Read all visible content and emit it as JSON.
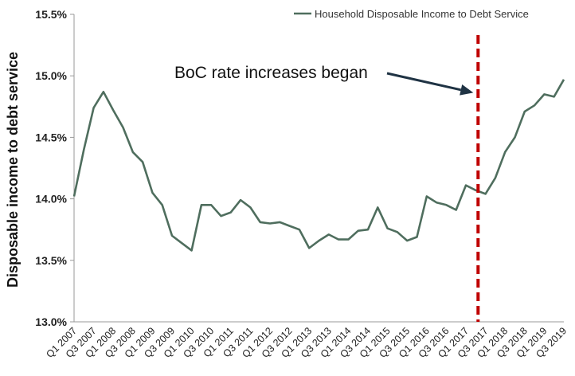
{
  "chart_data": {
    "type": "line",
    "title": "",
    "xlabel": "",
    "ylabel": "Disposable income to debt service",
    "ylim": [
      13.0,
      15.5
    ],
    "yticks": [
      13.0,
      13.5,
      14.0,
      14.5,
      15.0,
      15.5
    ],
    "ytick_labels": [
      "13.0%",
      "13.5%",
      "14.0%",
      "14.5%",
      "15.0%",
      "15.5%"
    ],
    "grid": false,
    "legend": {
      "placement": "top-right"
    },
    "categories": [
      "Q1 2007",
      "Q2 2007",
      "Q3 2007",
      "Q4 2007",
      "Q1 2008",
      "Q2 2008",
      "Q3 2008",
      "Q4 2008",
      "Q1 2009",
      "Q2 2009",
      "Q3 2009",
      "Q4 2009",
      "Q1 2010",
      "Q2 2010",
      "Q3 2010",
      "Q4 2010",
      "Q1 2011",
      "Q2 2011",
      "Q3 2011",
      "Q4 2011",
      "Q1 2012",
      "Q2 2012",
      "Q3 2012",
      "Q4 2012",
      "Q1 2013",
      "Q2 2013",
      "Q3 2013",
      "Q4 2013",
      "Q1 2014",
      "Q2 2014",
      "Q3 2014",
      "Q4 2014",
      "Q1 2015",
      "Q2 2015",
      "Q3 2015",
      "Q4 2015",
      "Q1 2016",
      "Q2 2016",
      "Q3 2016",
      "Q4 2016",
      "Q1 2017",
      "Q2 2017",
      "Q3 2017",
      "Q4 2017",
      "Q1 2018",
      "Q2 2018",
      "Q3 2018",
      "Q4 2018",
      "Q1 2019",
      "Q2 2019",
      "Q3 2019"
    ],
    "tick_labels": [
      "Q1 2007",
      "Q3 2007",
      "Q1 2008",
      "Q3 2008",
      "Q1 2009",
      "Q3 2009",
      "Q1 2010",
      "Q3 2010",
      "Q1 2011",
      "Q3 2011",
      "Q1 2012",
      "Q3 2012",
      "Q1 2013",
      "Q3 2013",
      "Q1 2014",
      "Q3 2014",
      "Q1 2015",
      "Q3 2015",
      "Q1 2016",
      "Q3 2016",
      "Q1 2017",
      "Q3 2017",
      "Q1 2018",
      "Q3 2018",
      "Q1 2019",
      "Q3 2019"
    ],
    "series": [
      {
        "name": "Household Disposable Income to Debt Service",
        "color": "#4f6e5e",
        "values": [
          14.02,
          14.4,
          14.74,
          14.87,
          14.72,
          14.58,
          14.38,
          14.3,
          14.05,
          13.95,
          13.7,
          13.64,
          13.58,
          13.95,
          13.95,
          13.86,
          13.89,
          13.99,
          13.93,
          13.81,
          13.8,
          13.81,
          13.78,
          13.75,
          13.6,
          13.66,
          13.71,
          13.67,
          13.67,
          13.74,
          13.75,
          13.93,
          13.76,
          13.73,
          13.66,
          13.69,
          14.02,
          13.97,
          13.95,
          13.91,
          14.11,
          14.07,
          14.04,
          14.17,
          14.38,
          14.5,
          14.71,
          14.76,
          14.85,
          14.83,
          14.97
        ]
      }
    ],
    "marker": {
      "x": "Q2 2017",
      "color": "#c00000",
      "style": "dashed"
    },
    "annotations": [
      {
        "text": "BoC rate increases began",
        "target_x": "Q2 2017",
        "target_y": 14.85
      }
    ]
  }
}
